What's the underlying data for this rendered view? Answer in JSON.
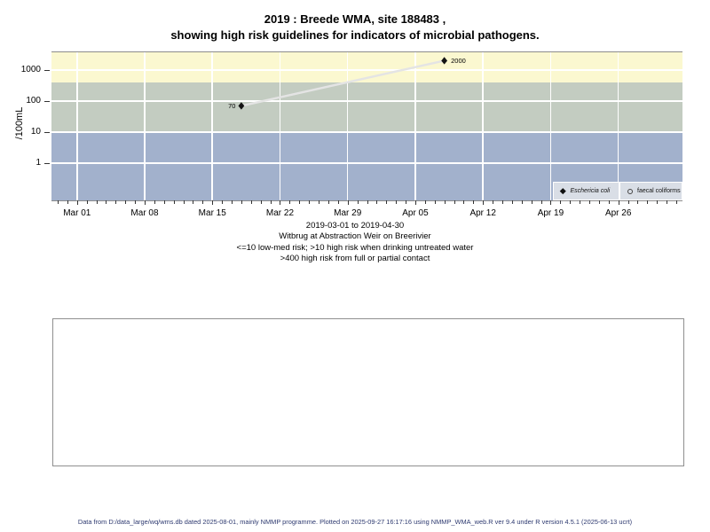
{
  "page": {
    "title_line1": "2019 : Breede WMA, site 188483 ,",
    "title_line2": "showing high risk guidelines for indicators of microbial pathogens.",
    "captions": [
      "2019-03-01 to 2019-04-30",
      "Witbrug at Abstraction Weir on Breerivier",
      "<=10 low-med risk; >10 high risk when drinking untreated water",
      ">400 high risk from full or partial contact"
    ],
    "footer": "Data from D:/data_large/wq/wms.db dated 2025-08-01, mainly NMMP programme. Plotted on 2025-09-27 16:17:16 using NMMP_WMA_web.R ver 9.4 under R version 4.5.1 (2025-06-13 ucrt)"
  },
  "chart_data": {
    "type": "scatter",
    "title": "2019 : Breede WMA, site 188483 , showing high risk guidelines for indicators of microbial pathogens.",
    "xlabel": "",
    "ylabel": "/100mL",
    "y_scale": "log10",
    "y_ticks": [
      1,
      10,
      100,
      1000
    ],
    "x_tick_labels": [
      "Mar 01",
      "Mar 08",
      "Mar 15",
      "Mar 22",
      "Mar 29",
      "Apr 05",
      "Apr 12",
      "Apr 19",
      "Apr 26"
    ],
    "x_tick_days": [
      0,
      7,
      14,
      21,
      28,
      35,
      42,
      49,
      56
    ],
    "date_range": [
      "2019-03-01",
      "2019-04-30"
    ],
    "minor_ticks": "daily",
    "grid": true,
    "risk_bands": [
      {
        "label": ">400 high risk from full or partial contact",
        "from": 400,
        "to": null,
        "color": "#fbf8d0"
      },
      {
        "label": ">10 high risk when drinking untreated water",
        "from": 10,
        "to": 400,
        "color": "#c3ccc1"
      },
      {
        "label": "<=10 low-med risk",
        "from": null,
        "to": 10,
        "color": "#a2b1cc"
      }
    ],
    "series": [
      {
        "name": "Eschericia coli",
        "marker": "filled-diamond",
        "points": [
          {
            "date": "2019-03-18",
            "day": 17,
            "value": 70,
            "label": "70",
            "label_side": "left"
          },
          {
            "date": "2019-04-08",
            "day": 38,
            "value": 2000,
            "label": "2000",
            "label_side": "right"
          }
        ]
      },
      {
        "name": "faecal coliforms",
        "marker": "open-circle",
        "points": []
      }
    ],
    "legend": {
      "position": "bottom-right",
      "items": [
        {
          "label": "Eschericia coli",
          "marker": "filled-diamond",
          "italic": true
        },
        {
          "label": "faecal coliforms",
          "marker": "open-circle",
          "italic": false
        }
      ]
    }
  },
  "colors": {
    "grid": "#ffffff",
    "series_line": "#e4e4e4",
    "point": "#141414",
    "legend_bg": "#d9dee6",
    "frame": "#8c8c8c",
    "footer_text": "#2e3a70"
  }
}
